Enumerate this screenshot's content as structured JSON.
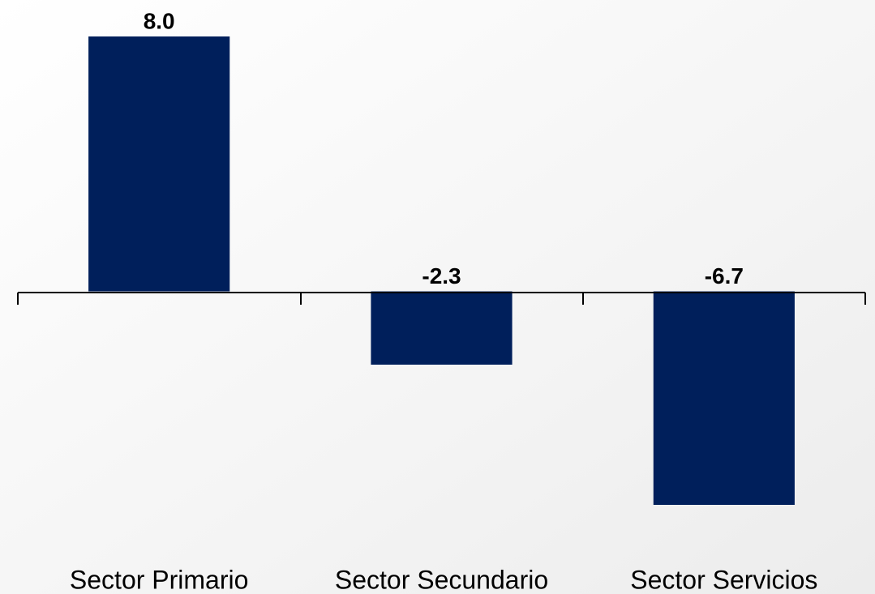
{
  "chart_data": {
    "type": "bar",
    "categories": [
      "Sector Primario",
      "Sector Secundario",
      "Sector Servicios"
    ],
    "values": [
      8.0,
      -2.3,
      -6.7
    ],
    "value_labels": [
      "8.0",
      "-2.3",
      "-6.7"
    ],
    "color": "#001f5b"
  }
}
